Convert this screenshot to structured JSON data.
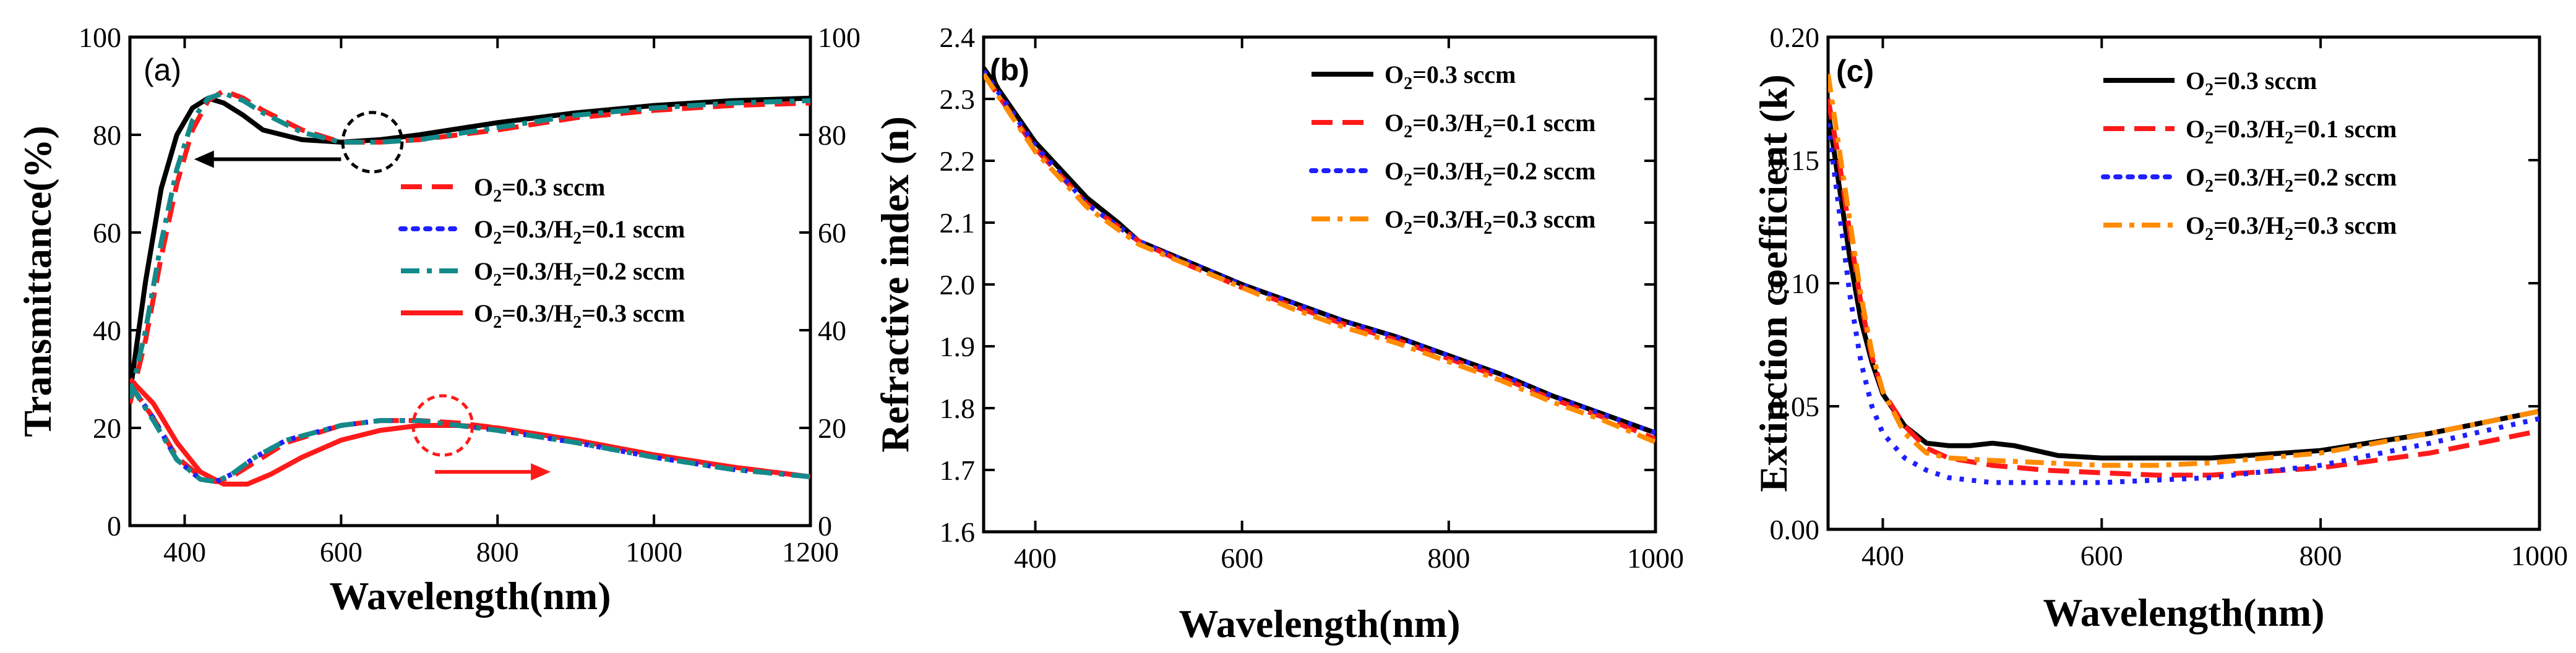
{
  "colors": {
    "black": "#000000",
    "red": "#ff1a1a",
    "blue": "#1f1fff",
    "teal": "#138a8a",
    "orange": "#ff8c00"
  },
  "chart_data": [
    {
      "type": "line",
      "panel": "(a)",
      "xlabel": "Wavelength(nm)",
      "ylabel": "Transmittance(%)",
      "xlim": [
        330,
        1200
      ],
      "ylim": [
        0,
        100
      ],
      "y2lim": [
        0,
        100
      ],
      "x_ticks": [
        "400",
        "600",
        "800",
        "1000",
        "1200"
      ],
      "y_ticks": [
        "0",
        "20",
        "40",
        "60",
        "80",
        "100"
      ],
      "y2_ticks": [
        "0",
        "20",
        "40",
        "60",
        "80",
        "100"
      ],
      "legend": [
        {
          "label_pre": "O",
          "sub": "2",
          "label_post": "=0.3 sccm",
          "color_key": "red",
          "style": "dash"
        },
        {
          "label_pre": "O",
          "sub": "2",
          "label_post": "=0.3/H",
          "sub2": "2",
          "label_post2": "=0.1 sccm",
          "color_key": "blue",
          "style": "dot"
        },
        {
          "label_pre": "O",
          "sub": "2",
          "label_post": "=0.3/H",
          "sub2": "2",
          "label_post2": "=0.2 sccm",
          "color_key": "teal",
          "style": "dashdot"
        },
        {
          "label_pre": "O",
          "sub": "2",
          "label_post": "=0.3/H",
          "sub2": "2",
          "label_post2": "=0.3 sccm",
          "color_key": "red",
          "style": "solid"
        }
      ],
      "series": [
        {
          "name": "transmittance_solid_black",
          "color_key": "black",
          "style": "solid",
          "x": [
            330,
            350,
            370,
            390,
            410,
            430,
            450,
            475,
            500,
            550,
            600,
            650,
            700,
            800,
            900,
            1000,
            1100,
            1200
          ],
          "y": [
            27,
            50,
            69,
            80,
            85.5,
            87.5,
            86.5,
            84,
            81,
            79,
            78.5,
            79,
            80,
            82.5,
            84.5,
            86,
            87,
            87.5
          ]
        },
        {
          "name": "transmittance_dashed_red",
          "color_key": "red",
          "style": "dash",
          "x": [
            330,
            350,
            370,
            390,
            410,
            430,
            450,
            475,
            500,
            550,
            600,
            650,
            700,
            800,
            900,
            1000,
            1100,
            1200
          ],
          "y": [
            25,
            38,
            55,
            70,
            81,
            87,
            89,
            87.5,
            85,
            81,
            78.5,
            78.5,
            79,
            81,
            83.5,
            85,
            86,
            86.5
          ]
        },
        {
          "name": "transmittance_dashdot_teal",
          "color_key": "teal",
          "style": "dashdot",
          "x": [
            330,
            350,
            370,
            390,
            410,
            430,
            450,
            475,
            500,
            550,
            600,
            650,
            700,
            800,
            900,
            1000,
            1100,
            1200
          ],
          "y": [
            26,
            40,
            58,
            73,
            83,
            87.5,
            88.5,
            87,
            84.5,
            80.5,
            78.5,
            78.5,
            79,
            81.5,
            84,
            85.5,
            86.5,
            87
          ]
        },
        {
          "name": "reflectance_solid_red",
          "color_key": "red",
          "style": "solid",
          "x": [
            330,
            360,
            390,
            420,
            450,
            480,
            510,
            550,
            600,
            650,
            700,
            750,
            800,
            900,
            1000,
            1100,
            1200
          ],
          "y": [
            30,
            25,
            17,
            11,
            8.5,
            8.5,
            10.5,
            14,
            17.5,
            19.5,
            20.5,
            20.5,
            20,
            17.5,
            14.5,
            12,
            10
          ]
        },
        {
          "name": "reflectance_dashed_red",
          "color_key": "red",
          "style": "dash",
          "x": [
            330,
            360,
            390,
            420,
            440,
            460,
            490,
            530,
            600,
            650,
            700,
            750,
            800,
            900,
            1000,
            1100,
            1200
          ],
          "y": [
            29,
            22,
            14,
            10,
            9,
            10,
            13,
            17,
            20.5,
            21.5,
            21.5,
            21,
            20,
            17.5,
            14.5,
            12,
            10
          ]
        },
        {
          "name": "reflectance_dotted_blue",
          "color_key": "blue",
          "style": "dot",
          "x": [
            330,
            360,
            390,
            420,
            440,
            460,
            490,
            530,
            600,
            650,
            700,
            750,
            800,
            900,
            1000,
            1100,
            1200
          ],
          "y": [
            29,
            22,
            13.5,
            9.5,
            9,
            10.5,
            14,
            17.5,
            20.5,
            21.5,
            21.5,
            20.5,
            19.5,
            17,
            14,
            11.5,
            10
          ]
        },
        {
          "name": "reflectance_dashdot_teal",
          "color_key": "teal",
          "style": "dashdot",
          "x": [
            330,
            360,
            390,
            420,
            440,
            460,
            490,
            530,
            600,
            650,
            700,
            750,
            800,
            900,
            1000,
            1100,
            1200
          ],
          "y": [
            29,
            21.5,
            13.5,
            9.5,
            9,
            10.5,
            14,
            17.5,
            20.5,
            21.5,
            21.5,
            20.5,
            19.5,
            17,
            14,
            11.5,
            10
          ]
        }
      ],
      "annotations": [
        {
          "type": "circle",
          "color_key": "black",
          "x": 640,
          "y": 78.5,
          "note": "dashed circle around transmittance dip"
        },
        {
          "type": "arrow_left",
          "color_key": "black",
          "x_from": 600,
          "x_to": 420,
          "y": 75
        },
        {
          "type": "circle",
          "color_key": "red",
          "x": 730,
          "y": 20.5,
          "note": "dashed circle around reflectance peak"
        },
        {
          "type": "arrow_right",
          "color_key": "red",
          "x_from": 720,
          "x_to": 860,
          "y": 11
        }
      ]
    },
    {
      "type": "line",
      "panel": "(b)",
      "xlabel": "Wavelength(nm)",
      "ylabel": "Refractive index (n)",
      "xlim": [
        350,
        1000
      ],
      "ylim": [
        1.6,
        2.4
      ],
      "x_ticks": [
        "400",
        "600",
        "800",
        "1000"
      ],
      "y_ticks": [
        "1.6",
        "1.7",
        "1.8",
        "1.9",
        "2.0",
        "2.1",
        "2.2",
        "2.3",
        "2.4"
      ],
      "legend": [
        {
          "label_pre": "O",
          "sub": "2",
          "label_post": "=0.3 sccm",
          "color_key": "black",
          "style": "solid"
        },
        {
          "label_pre": "O",
          "sub": "2",
          "label_post": "=0.3/H",
          "sub2": "2",
          "label_post2": "=0.1 sccm",
          "color_key": "red",
          "style": "dash"
        },
        {
          "label_pre": "O",
          "sub": "2",
          "label_post": "=0.3/H",
          "sub2": "2",
          "label_post2": "=0.2 sccm",
          "color_key": "blue",
          "style": "dot"
        },
        {
          "label_pre": "O",
          "sub": "2",
          "label_post": "=0.3/H",
          "sub2": "2",
          "label_post2": "=0.3 sccm",
          "color_key": "orange",
          "style": "dashdot"
        }
      ],
      "series": [
        {
          "name": "O2=0.3 sccm",
          "color_key": "black",
          "style": "solid",
          "x": [
            350,
            400,
            450,
            480,
            500,
            550,
            600,
            650,
            700,
            750,
            800,
            850,
            900,
            950,
            1000
          ],
          "y": [
            2.35,
            2.23,
            2.14,
            2.1,
            2.07,
            2.035,
            2.0,
            1.97,
            1.94,
            1.915,
            1.885,
            1.855,
            1.82,
            1.79,
            1.76
          ]
        },
        {
          "name": "O2=0.3/H2=0.1 sccm",
          "color_key": "red",
          "style": "dash",
          "x": [
            350,
            400,
            450,
            500,
            550,
            600,
            650,
            700,
            750,
            800,
            850,
            900,
            950,
            1000
          ],
          "y": [
            2.34,
            2.22,
            2.13,
            2.07,
            2.03,
            1.995,
            1.965,
            1.935,
            1.91,
            1.88,
            1.85,
            1.815,
            1.785,
            1.75
          ]
        },
        {
          "name": "O2=0.3/H2=0.2 sccm",
          "color_key": "blue",
          "style": "dot",
          "x": [
            350,
            400,
            450,
            500,
            550,
            600,
            650,
            700,
            750,
            800,
            850,
            900,
            950,
            1000
          ],
          "y": [
            2.345,
            2.225,
            2.13,
            2.07,
            2.035,
            2.0,
            1.97,
            1.94,
            1.915,
            1.885,
            1.855,
            1.82,
            1.79,
            1.76
          ]
        },
        {
          "name": "O2=0.3/H2=0.3 sccm",
          "color_key": "orange",
          "style": "dashdot",
          "x": [
            350,
            400,
            450,
            500,
            550,
            600,
            650,
            700,
            750,
            800,
            850,
            900,
            950,
            1000
          ],
          "y": [
            2.34,
            2.215,
            2.125,
            2.065,
            2.03,
            1.995,
            1.96,
            1.93,
            1.905,
            1.875,
            1.845,
            1.81,
            1.78,
            1.745
          ]
        }
      ]
    },
    {
      "type": "line",
      "panel": "(c)",
      "xlabel": "Wavelength(nm)",
      "ylabel": "Extinction coefficient (k)",
      "xlim": [
        350,
        1000
      ],
      "ylim": [
        0,
        0.2
      ],
      "x_ticks": [
        "400",
        "600",
        "800",
        "1000"
      ],
      "y_ticks": [
        "0.00",
        "0.05",
        "0.10",
        "0.15",
        "0.20"
      ],
      "legend": [
        {
          "label_pre": "O",
          "sub": "2",
          "label_post": "=0.3 sccm",
          "color_key": "black",
          "style": "solid"
        },
        {
          "label_pre": "O",
          "sub": "2",
          "label_post": "=0.3/H",
          "sub2": "2",
          "label_post2": "=0.1 sccm",
          "color_key": "red",
          "style": "dash"
        },
        {
          "label_pre": "O",
          "sub": "2",
          "label_post": "=0.3/H",
          "sub2": "2",
          "label_post2": "=0.2 sccm",
          "color_key": "blue",
          "style": "dot"
        },
        {
          "label_pre": "O",
          "sub": "2",
          "label_post": "=0.3/H",
          "sub2": "2",
          "label_post2": "=0.3 sccm",
          "color_key": "orange",
          "style": "dashdot"
        }
      ],
      "series": [
        {
          "name": "O2=0.3 sccm",
          "color_key": "black",
          "style": "solid",
          "x": [
            350,
            360,
            370,
            380,
            390,
            400,
            420,
            440,
            460,
            480,
            500,
            520,
            560,
            600,
            700,
            800,
            900,
            1000
          ],
          "y": [
            0.17,
            0.14,
            0.11,
            0.085,
            0.068,
            0.055,
            0.042,
            0.035,
            0.034,
            0.034,
            0.035,
            0.034,
            0.03,
            0.029,
            0.029,
            0.032,
            0.039,
            0.048
          ]
        },
        {
          "name": "O2=0.3/H2=0.1 sccm",
          "color_key": "red",
          "style": "dash",
          "x": [
            350,
            360,
            370,
            380,
            390,
            400,
            420,
            440,
            460,
            500,
            550,
            600,
            650,
            700,
            800,
            900,
            1000
          ],
          "y": [
            0.175,
            0.15,
            0.12,
            0.092,
            0.07,
            0.056,
            0.042,
            0.033,
            0.029,
            0.026,
            0.024,
            0.023,
            0.022,
            0.022,
            0.025,
            0.031,
            0.04
          ]
        },
        {
          "name": "O2=0.3/H2=0.2 sccm",
          "color_key": "blue",
          "style": "dot",
          "x": [
            350,
            360,
            370,
            380,
            390,
            400,
            420,
            440,
            460,
            500,
            550,
            600,
            650,
            700,
            800,
            900,
            1000
          ],
          "y": [
            0.165,
            0.13,
            0.095,
            0.068,
            0.05,
            0.039,
            0.029,
            0.024,
            0.021,
            0.019,
            0.019,
            0.019,
            0.02,
            0.021,
            0.026,
            0.035,
            0.045
          ]
        },
        {
          "name": "O2=0.3/H2=0.3 sccm",
          "color_key": "orange",
          "style": "dashdot",
          "x": [
            350,
            360,
            370,
            380,
            390,
            400,
            420,
            440,
            460,
            500,
            550,
            600,
            650,
            700,
            800,
            900,
            1000
          ],
          "y": [
            0.185,
            0.155,
            0.125,
            0.095,
            0.072,
            0.056,
            0.039,
            0.031,
            0.029,
            0.028,
            0.027,
            0.026,
            0.026,
            0.027,
            0.031,
            0.039,
            0.048
          ]
        }
      ]
    }
  ]
}
